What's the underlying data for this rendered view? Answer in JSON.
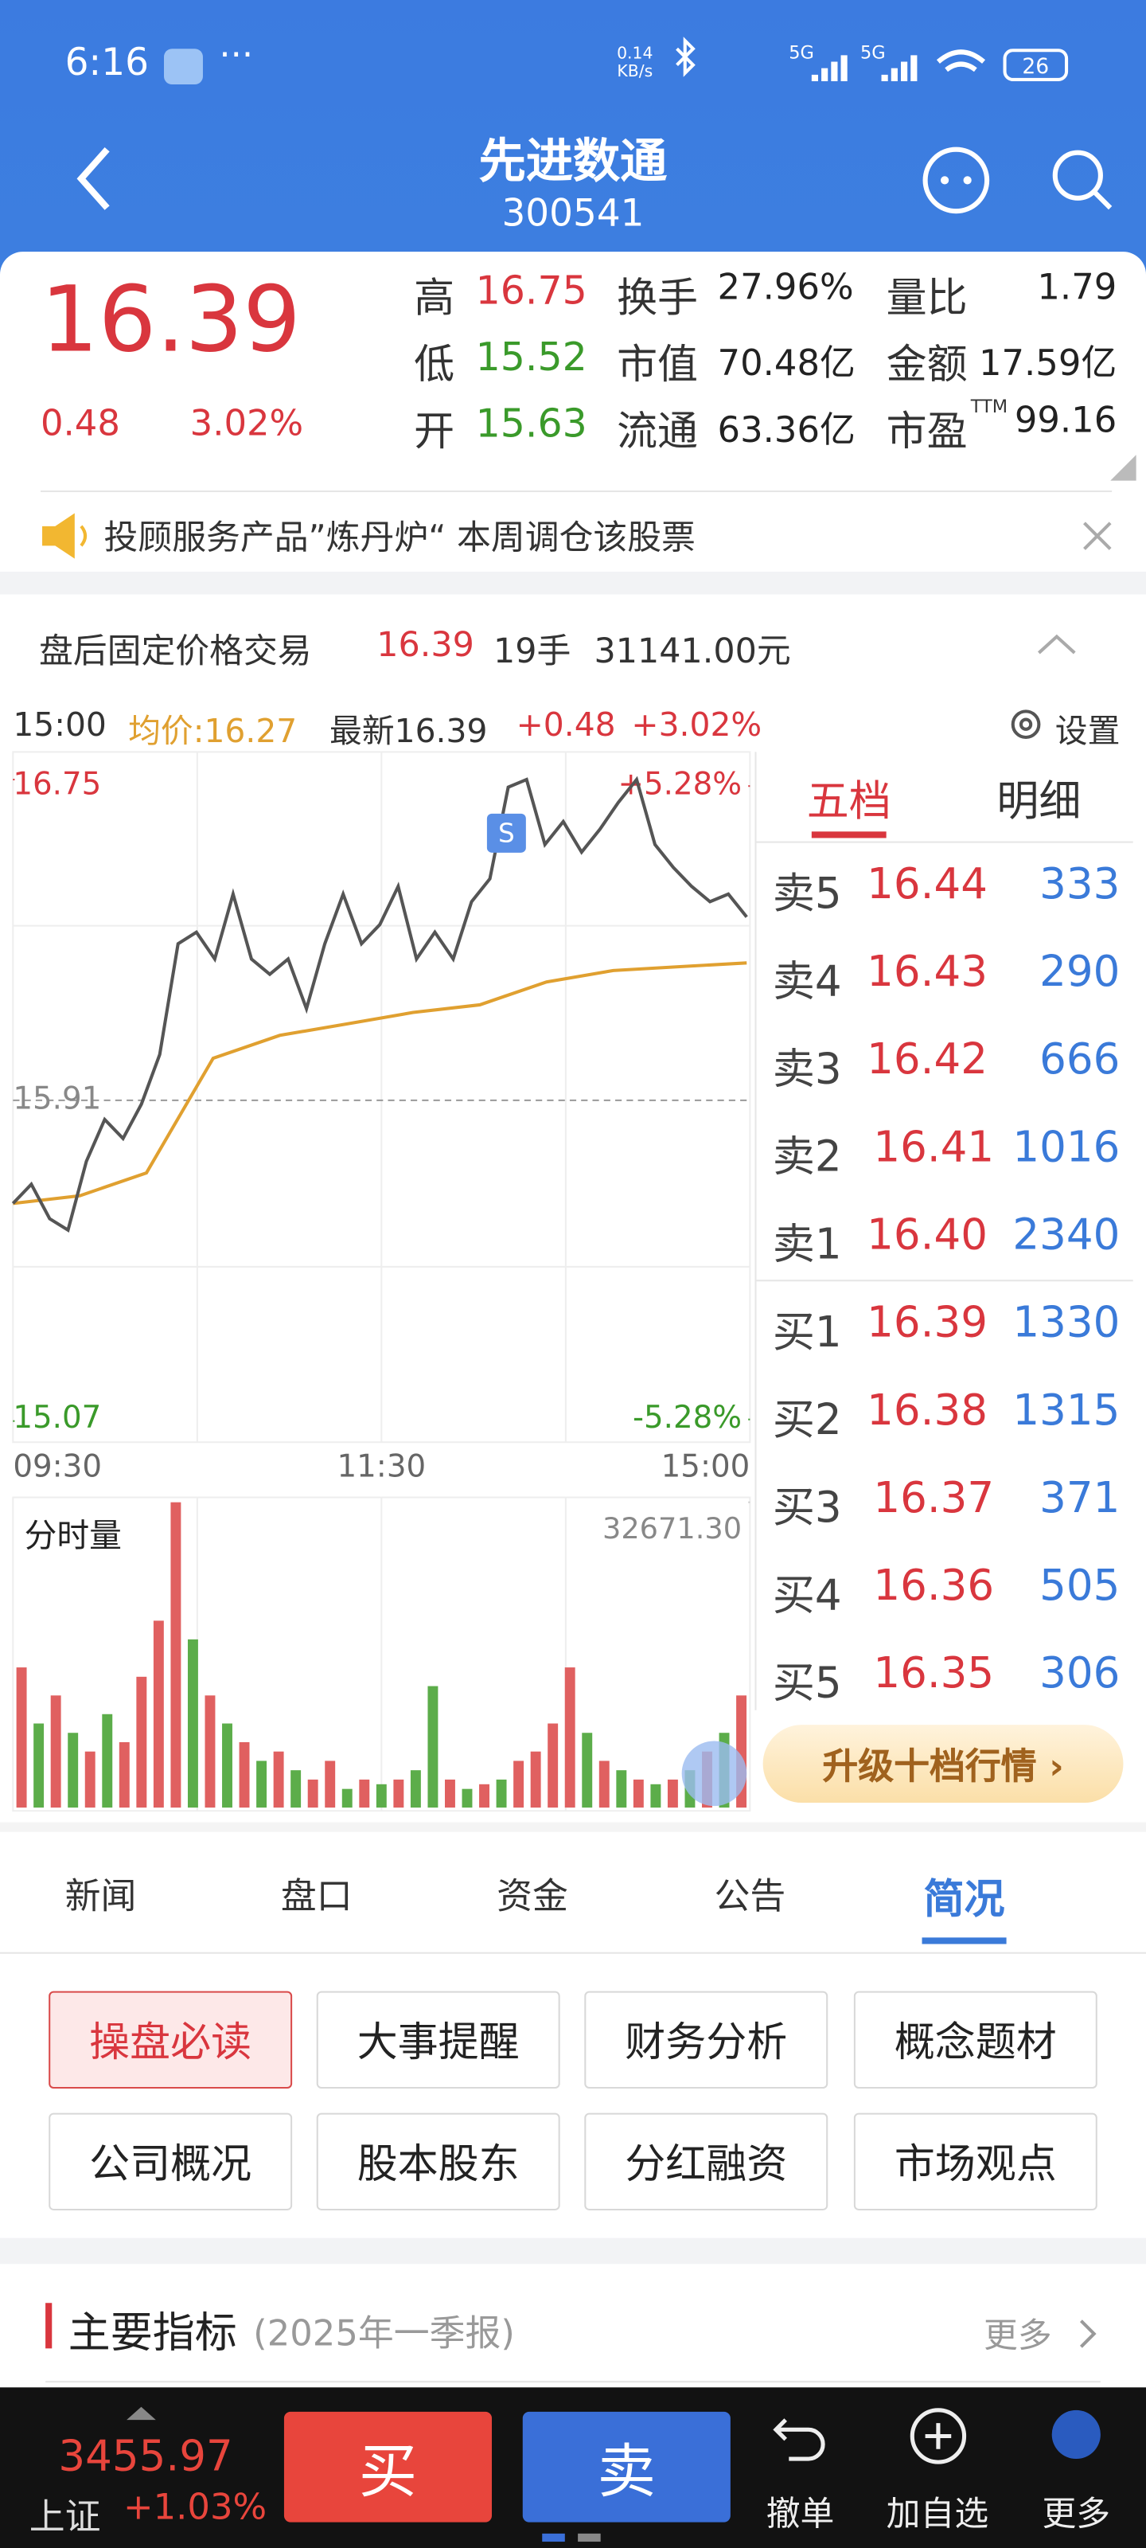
{
  "status_bar": {
    "time": "6:16",
    "net_speed": "0.14",
    "net_unit": "KB/s",
    "sim1": "5G",
    "sim2": "5G",
    "battery": "26"
  },
  "header": {
    "title": "先进数通",
    "code": "300541"
  },
  "quote": {
    "price": "16.39",
    "change": "0.48",
    "change_pct": "3.02%",
    "stats": [
      {
        "label": "高",
        "value": "16.75",
        "tone": "up"
      },
      {
        "label": "换手",
        "value": "27.96%"
      },
      {
        "label": "量比",
        "value": "1.79"
      },
      {
        "label": "低",
        "value": "15.52",
        "tone": "down"
      },
      {
        "label": "市值",
        "value": "70.48亿"
      },
      {
        "label": "金额",
        "value": "17.59亿"
      },
      {
        "label": "开",
        "value": "15.63",
        "tone": "down"
      },
      {
        "label": "流通",
        "value": "63.36亿"
      },
      {
        "label": "市盈",
        "sup": "TTM",
        "value": "99.16"
      }
    ]
  },
  "notice": {
    "text": "投顾服务产品”炼丹炉“ 本周调仓该股票"
  },
  "after_hours": {
    "label": "盘后固定价格交易",
    "price": "16.39",
    "volume": "19手",
    "amount": "31141.00元"
  },
  "chart_info": {
    "time": "15:00",
    "avg": "均价:16.27",
    "latest": "最新16.39",
    "change": "+0.48",
    "change_pct": "+3.02%",
    "settings": "设置"
  },
  "intraday": {
    "type": "line",
    "ylim": [
      15.07,
      16.75
    ],
    "yticks": [
      16.75,
      15.91,
      15.07
    ],
    "pct_ticks": [
      {
        "value": 5.28,
        "label": "+5.28%"
      },
      {
        "value": -5.28,
        "label": "-5.28%"
      }
    ],
    "xlabels": [
      "09:30",
      "11:30",
      "15:00"
    ],
    "price": {
      "color": "#555555",
      "values": [
        15.64,
        15.69,
        15.6,
        15.57,
        15.75,
        15.86,
        15.81,
        15.9,
        16.03,
        16.32,
        16.35,
        16.28,
        16.45,
        16.28,
        16.24,
        16.28,
        16.15,
        16.32,
        16.45,
        16.32,
        16.37,
        16.47,
        16.28,
        16.35,
        16.28,
        16.43,
        16.49,
        16.73,
        16.75,
        16.58,
        16.64,
        16.56,
        16.62,
        16.69,
        16.75,
        16.58,
        16.52,
        16.47,
        16.43,
        16.45,
        16.39
      ]
    },
    "avg": {
      "color": "#e0a030",
      "values": [
        15.64,
        15.66,
        15.72,
        16.02,
        16.08,
        16.11,
        16.14,
        16.16,
        16.22,
        16.25,
        16.26,
        16.27
      ]
    }
  },
  "volume": {
    "title": "分时量",
    "ylim": [
      0,
      32671.3
    ],
    "yticks": [
      {
        "value": 32671.3,
        "label": "32671.30"
      }
    ],
    "bars": [
      {
        "v": 15000,
        "up": true
      },
      {
        "v": 9000,
        "up": false
      },
      {
        "v": 12000,
        "up": true
      },
      {
        "v": 8000,
        "up": false
      },
      {
        "v": 6000,
        "up": true
      },
      {
        "v": 10000,
        "up": false
      },
      {
        "v": 7000,
        "up": true
      },
      {
        "v": 14000,
        "up": true
      },
      {
        "v": 20000,
        "up": true
      },
      {
        "v": 32671.3,
        "up": true
      },
      {
        "v": 18000,
        "up": false
      },
      {
        "v": 12000,
        "up": true
      },
      {
        "v": 9000,
        "up": false
      },
      {
        "v": 7000,
        "up": true
      },
      {
        "v": 5000,
        "up": false
      },
      {
        "v": 6000,
        "up": true
      },
      {
        "v": 4000,
        "up": false
      },
      {
        "v": 3000,
        "up": true
      },
      {
        "v": 5000,
        "up": true
      },
      {
        "v": 2000,
        "up": false
      },
      {
        "v": 3000,
        "up": true
      },
      {
        "v": 2500,
        "up": false
      },
      {
        "v": 3000,
        "up": true
      },
      {
        "v": 4000,
        "up": false
      },
      {
        "v": 13000,
        "up": false
      },
      {
        "v": 3000,
        "up": true
      },
      {
        "v": 2000,
        "up": false
      },
      {
        "v": 2500,
        "up": true
      },
      {
        "v": 3000,
        "up": false
      },
      {
        "v": 5000,
        "up": true
      },
      {
        "v": 6000,
        "up": true
      },
      {
        "v": 9000,
        "up": true
      },
      {
        "v": 15000,
        "up": true
      },
      {
        "v": 8000,
        "up": false
      },
      {
        "v": 5000,
        "up": true
      },
      {
        "v": 4000,
        "up": false
      },
      {
        "v": 3000,
        "up": true
      },
      {
        "v": 2500,
        "up": false
      },
      {
        "v": 3000,
        "up": true
      },
      {
        "v": 4000,
        "up": false
      },
      {
        "v": 6000,
        "up": true
      },
      {
        "v": 8000,
        "up": false
      },
      {
        "v": 12000,
        "up": true
      }
    ]
  },
  "order_book": {
    "tabs": [
      "五档",
      "明细"
    ],
    "rows": [
      {
        "label": "卖5",
        "price": "16.44",
        "volume": "333"
      },
      {
        "label": "卖4",
        "price": "16.43",
        "volume": "290"
      },
      {
        "label": "卖3",
        "price": "16.42",
        "volume": "666"
      },
      {
        "label": "卖2",
        "price": "16.41",
        "volume": "1016"
      },
      {
        "label": "卖1",
        "price": "16.40",
        "volume": "2340"
      },
      {
        "label": "买1",
        "price": "16.39",
        "volume": "1330"
      },
      {
        "label": "买2",
        "price": "16.38",
        "volume": "1315"
      },
      {
        "label": "买3",
        "price": "16.37",
        "volume": "371"
      },
      {
        "label": "买4",
        "price": "16.36",
        "volume": "505"
      },
      {
        "label": "买5",
        "price": "16.35",
        "volume": "306"
      }
    ],
    "upgrade": "升级十档行情 ›"
  },
  "tabs": [
    "新闻",
    "盘口",
    "资金",
    "公告",
    "简况"
  ],
  "buttons": [
    "操盘必读",
    "大事提醒",
    "财务分析",
    "概念题材",
    "公司概况",
    "股本股东",
    "分红融资",
    "市场观点"
  ],
  "section": {
    "title": "主要指标",
    "subtitle": "(2025年一季报)",
    "more": "更多"
  },
  "bottom_bar": {
    "index_value": "3455.97",
    "index_name": "上证",
    "index_change": "+1.03%",
    "buy": "买",
    "sell": "卖",
    "actions": [
      "撤单",
      "加自选",
      "更多"
    ]
  }
}
